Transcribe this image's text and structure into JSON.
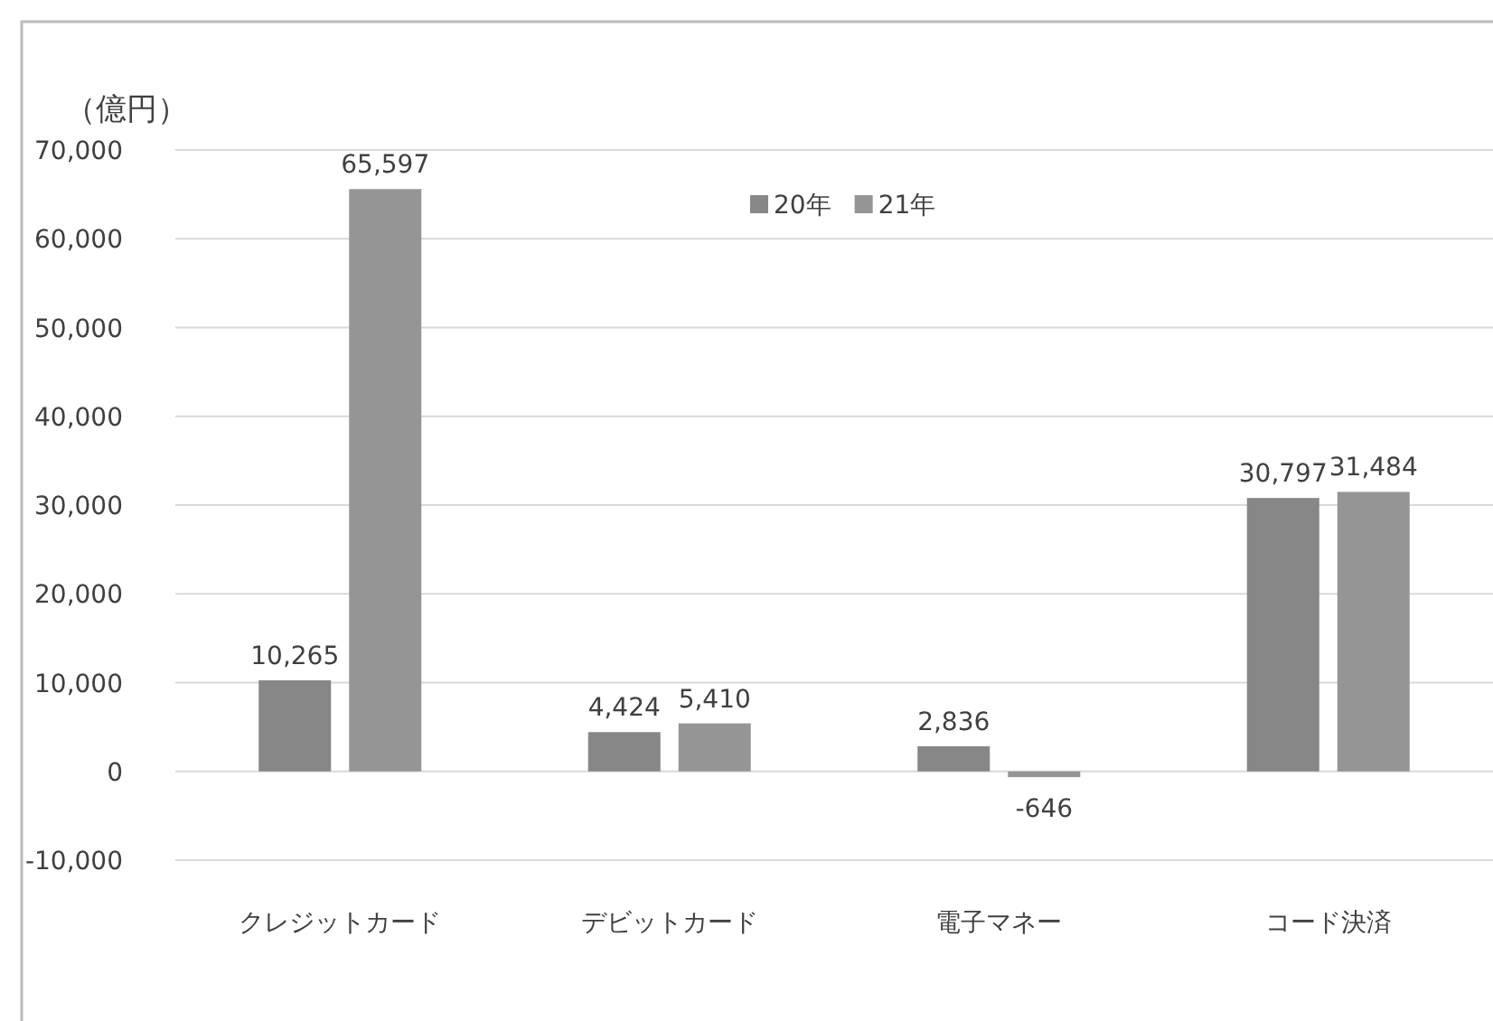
{
  "chart_data": {
    "type": "bar",
    "ylabel": "（億円）",
    "categories": [
      "クレジットカード",
      "デビットカード",
      "電子マネー",
      "コード決済"
    ],
    "series": [
      {
        "name": "20年",
        "color": "#878787",
        "values": [
          10265,
          4424,
          2836,
          30797
        ],
        "value_labels": [
          "10,265",
          "4,424",
          "2,836",
          "30,797"
        ]
      },
      {
        "name": "21年",
        "color": "#959595",
        "values": [
          65597,
          5410,
          -646,
          31484
        ],
        "value_labels": [
          "65,597",
          "5,410",
          "-646",
          "31,484"
        ]
      }
    ],
    "ylim": [
      -10000,
      70000
    ],
    "yticks": [
      {
        "value": -10000,
        "label": "-10,000"
      },
      {
        "value": 0,
        "label": "0"
      },
      {
        "value": 10000,
        "label": "10,000"
      },
      {
        "value": 20000,
        "label": "20,000"
      },
      {
        "value": 30000,
        "label": "30,000"
      },
      {
        "value": 40000,
        "label": "40,000"
      },
      {
        "value": 50000,
        "label": "50,000"
      },
      {
        "value": 60000,
        "label": "60,000"
      },
      {
        "value": 70000,
        "label": "70,000"
      }
    ],
    "grid": "y",
    "legend": "top"
  }
}
